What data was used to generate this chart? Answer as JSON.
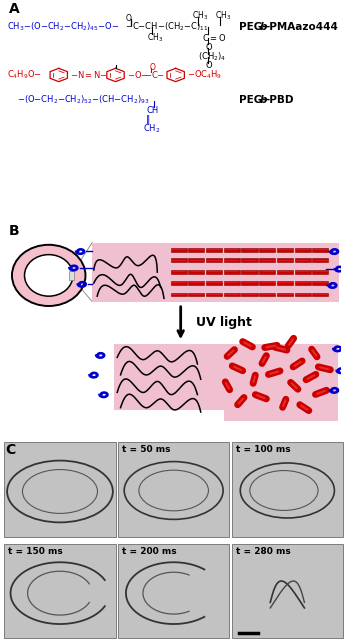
{
  "bg_color": "#ffffff",
  "blue": "#0000cc",
  "red": "#cc0000",
  "black": "#000000",
  "pink": "#f0c0d0",
  "gray_img": "#c8c8c8",
  "dark_gray": "#888888",
  "polymer1": "PEG-b-PMAazo444",
  "polymer2": "PEG-b-PBD",
  "uv_text": "UV light",
  "time_labels": [
    "",
    "t = 50 ms",
    "t = 100 ms",
    "t = 150 ms",
    "t = 200 ms",
    "t = 280 ms"
  ]
}
